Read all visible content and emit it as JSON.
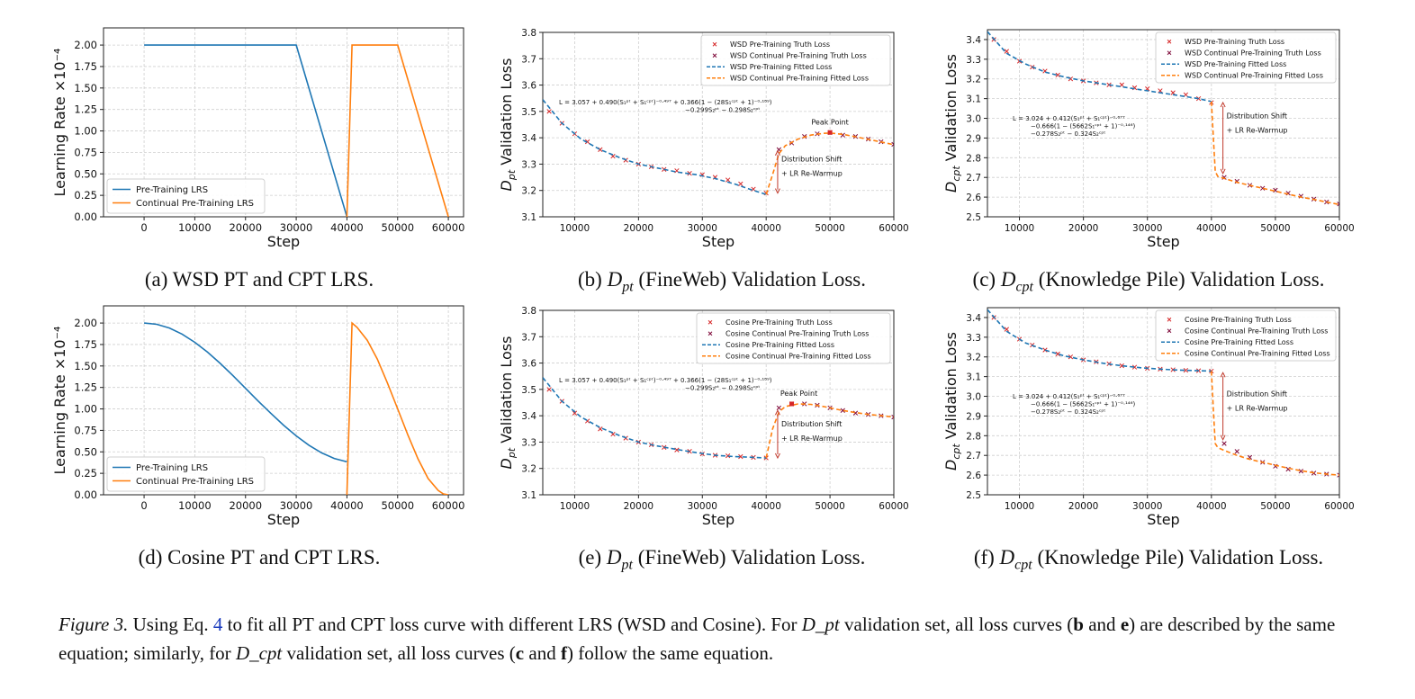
{
  "figure": {
    "label": "Figure 3.",
    "caption_parts": [
      "Using Eq.",
      "4",
      "to fit all PT and CPT loss curve with different LRS (WSD and Cosine). For",
      "D_pt",
      "validation set, all loss curves (",
      "b",
      "and",
      "e",
      ") are described by the same equation; similarly, for",
      "D_cpt",
      "validation set, all loss curves (",
      "c",
      "and",
      "f",
      ") follow the same equation."
    ]
  },
  "chart_data": [
    {
      "id": "a",
      "type": "line",
      "caption": "(a) WSD PT and CPT LRS.",
      "xlabel": "Step",
      "ylabel": "Learning Rate ×10⁻⁴",
      "xlim": [
        -8000,
        63000
      ],
      "ylim": [
        0,
        2.2
      ],
      "xticks": [
        0,
        10000,
        20000,
        30000,
        40000,
        50000,
        60000
      ],
      "yticks": [
        0.0,
        0.25,
        0.5,
        0.75,
        1.0,
        1.25,
        1.5,
        1.75,
        2.0
      ],
      "ytick_labels": [
        "0.00",
        "0.25",
        "0.50",
        "0.75",
        "1.00",
        "1.25",
        "1.50",
        "1.75",
        "2.00"
      ],
      "grid": true,
      "legend_position": "lower-left",
      "series": [
        {
          "name": "Pre-Training LRS",
          "color": "#1f77b4",
          "style": "solid",
          "x": [
            0,
            30000,
            40000
          ],
          "y": [
            2.0,
            2.0,
            0.0
          ]
        },
        {
          "name": "Continual Pre-Training LRS",
          "color": "#ff7f0e",
          "style": "solid",
          "x": [
            40000,
            41000,
            50000,
            60000
          ],
          "y": [
            0.0,
            2.0,
            2.0,
            0.0
          ]
        }
      ]
    },
    {
      "id": "b",
      "type": "line",
      "caption": "(b) D_pt (FineWeb) Validation Loss.",
      "xlabel": "Step",
      "ylabel": "D_pt Validation Loss",
      "xlim": [
        5000,
        60000
      ],
      "ylim": [
        3.1,
        3.8
      ],
      "xticks": [
        10000,
        20000,
        30000,
        40000,
        50000,
        60000
      ],
      "yticks": [
        3.1,
        3.2,
        3.3,
        3.4,
        3.5,
        3.6,
        3.7,
        3.8
      ],
      "ytick_labels": [
        "3.1",
        "3.2",
        "3.3",
        "3.4",
        "3.5",
        "3.6",
        "3.7",
        "3.8"
      ],
      "grid": true,
      "legend_position": "top-right",
      "equation": [
        "L = 3.057 + 0.490(S₁ᵖᵗ + S₁ᶜᵖᵗ)⁻⁰·⁴⁹⁷ + 0.366(1 − (28S₁ᶜᵖᵗ + 1)⁻⁰·¹⁸⁹)",
        "−0.299S₂ᵖᵗ − 0.298S₂ᶜᵖᵗ"
      ],
      "annotations": [
        "Peak Point",
        "Distribution Shift",
        "+ LR Re-Warmup"
      ],
      "series": [
        {
          "name": "WSD Pre-Training Truth Loss",
          "color": "#d62728",
          "style": "x",
          "x": [
            6000,
            8000,
            10000,
            12000,
            14000,
            16000,
            18000,
            20000,
            22000,
            24000,
            26000,
            28000,
            30000,
            32000,
            34000,
            36000,
            38000,
            40000
          ],
          "y": [
            3.5,
            3.455,
            3.415,
            3.385,
            3.355,
            3.33,
            3.315,
            3.3,
            3.29,
            3.28,
            3.275,
            3.265,
            3.26,
            3.25,
            3.24,
            3.225,
            3.205,
            3.19
          ]
        },
        {
          "name": "WSD Continual Pre-Training Truth Loss",
          "color": "#7f0a3a",
          "style": "x",
          "x": [
            42000,
            44000,
            46000,
            48000,
            50000,
            52000,
            54000,
            56000,
            58000,
            60000
          ],
          "y": [
            3.355,
            3.38,
            3.405,
            3.415,
            3.42,
            3.41,
            3.405,
            3.395,
            3.385,
            3.375
          ]
        },
        {
          "name": "WSD Pre-Training Fitted Loss",
          "color": "#1f77b4",
          "style": "dashed",
          "x": [
            5000,
            8000,
            11000,
            14000,
            17000,
            20000,
            23000,
            26000,
            29000,
            32000,
            35000,
            38000,
            40000
          ],
          "y": [
            3.545,
            3.455,
            3.395,
            3.355,
            3.325,
            3.3,
            3.285,
            3.27,
            3.26,
            3.245,
            3.225,
            3.2,
            3.185
          ]
        },
        {
          "name": "WSD Continual Pre-Training Fitted Loss",
          "color": "#ff7f0e",
          "style": "dashed",
          "x": [
            40000,
            41000,
            42000,
            43000,
            45000,
            47000,
            49000,
            50000,
            52000,
            54000,
            56000,
            58000,
            60000
          ],
          "y": [
            3.185,
            3.26,
            3.34,
            3.37,
            3.395,
            3.41,
            3.417,
            3.418,
            3.413,
            3.404,
            3.394,
            3.384,
            3.374
          ]
        }
      ],
      "highlight": {
        "label": "Peak Point",
        "x": 50000,
        "y": 3.42
      }
    },
    {
      "id": "c",
      "type": "line",
      "caption": "(c) D_cpt (Knowledge Pile) Validation Loss.",
      "xlabel": "Step",
      "ylabel": "D_cpt Validation Loss",
      "xlim": [
        5000,
        60000
      ],
      "ylim": [
        2.5,
        3.45
      ],
      "xticks": [
        10000,
        20000,
        30000,
        40000,
        50000,
        60000
      ],
      "yticks": [
        2.5,
        2.6,
        2.7,
        2.8,
        2.9,
        3.0,
        3.1,
        3.2,
        3.3,
        3.4
      ],
      "ytick_labels": [
        "2.5",
        "2.6",
        "2.7",
        "2.8",
        "2.9",
        "3.0",
        "3.1",
        "3.2",
        "3.3",
        "3.4"
      ],
      "grid": true,
      "legend_position": "top-right",
      "equation": [
        "L = 3.024 + 0.412(S₁ᵖᵗ + S₁ᶜᵖᵗ)⁻⁰·⁶⁷⁷",
        "−0.666(1 − (5662S₁ᶜᵖᵗ + 1)⁻⁰·¹⁴⁶)",
        "−0.278S₂ᵖᵗ − 0.324S₂ᶜᵖᵗ"
      ],
      "annotations": [
        "Distribution Shift",
        "+ LR Re-Warmup"
      ],
      "series": [
        {
          "name": "WSD Pre-Training Truth Loss",
          "color": "#d62728",
          "style": "x",
          "x": [
            6000,
            8000,
            10000,
            12000,
            14000,
            16000,
            18000,
            20000,
            22000,
            24000,
            26000,
            28000,
            30000,
            32000,
            34000,
            36000,
            38000,
            40000
          ],
          "y": [
            3.4,
            3.34,
            3.29,
            3.26,
            3.24,
            3.22,
            3.2,
            3.19,
            3.18,
            3.17,
            3.17,
            3.155,
            3.15,
            3.14,
            3.13,
            3.12,
            3.1,
            3.08
          ]
        },
        {
          "name": "WSD Continual Pre-Training Truth Loss",
          "color": "#7f0a3a",
          "style": "x",
          "x": [
            42000,
            44000,
            46000,
            48000,
            50000,
            52000,
            54000,
            56000,
            58000,
            60000
          ],
          "y": [
            2.7,
            2.68,
            2.66,
            2.645,
            2.635,
            2.62,
            2.605,
            2.59,
            2.575,
            2.565
          ]
        },
        {
          "name": "WSD Pre-Training Fitted Loss",
          "color": "#1f77b4",
          "style": "dashed",
          "x": [
            5000,
            8000,
            11000,
            14000,
            17000,
            20000,
            23000,
            26000,
            29000,
            32000,
            35000,
            38000,
            40000
          ],
          "y": [
            3.44,
            3.33,
            3.275,
            3.235,
            3.21,
            3.19,
            3.175,
            3.16,
            3.145,
            3.13,
            3.115,
            3.1,
            3.085
          ]
        },
        {
          "name": "WSD Continual Pre-Training Fitted Loss",
          "color": "#ff7f0e",
          "style": "dashed",
          "x": [
            40000,
            40300,
            40600,
            41000,
            42000,
            44000,
            46000,
            48000,
            50000,
            52000,
            54000,
            56000,
            58000,
            60000
          ],
          "y": [
            3.085,
            2.9,
            2.73,
            2.705,
            2.695,
            2.675,
            2.66,
            2.645,
            2.63,
            2.615,
            2.6,
            2.588,
            2.575,
            2.562
          ]
        }
      ]
    },
    {
      "id": "d",
      "type": "line",
      "caption": "(d) Cosine PT and CPT LRS.",
      "xlabel": "Step",
      "ylabel": "Learning Rate ×10⁻⁴",
      "xlim": [
        -8000,
        63000
      ],
      "ylim": [
        0,
        2.2
      ],
      "xticks": [
        0,
        10000,
        20000,
        30000,
        40000,
        50000,
        60000
      ],
      "yticks": [
        0.0,
        0.25,
        0.5,
        0.75,
        1.0,
        1.25,
        1.5,
        1.75,
        2.0
      ],
      "ytick_labels": [
        "0.00",
        "0.25",
        "0.50",
        "0.75",
        "1.00",
        "1.25",
        "1.50",
        "1.75",
        "2.00"
      ],
      "grid": true,
      "legend_position": "lower-left",
      "series": [
        {
          "name": "Pre-Training LRS",
          "color": "#1f77b4",
          "style": "solid",
          "x": [
            0,
            2500,
            5000,
            7500,
            10000,
            12500,
            15000,
            17500,
            20000,
            22500,
            25000,
            27500,
            30000,
            32500,
            35000,
            37500,
            40000
          ],
          "y": [
            2.0,
            1.985,
            1.942,
            1.871,
            1.776,
            1.662,
            1.531,
            1.389,
            1.24,
            1.092,
            0.949,
            0.811,
            0.686,
            0.577,
            0.488,
            0.423,
            0.385
          ]
        },
        {
          "name": "Continual Pre-Training LRS",
          "color": "#ff7f0e",
          "style": "solid",
          "x": [
            40000,
            41000,
            42000,
            44000,
            46000,
            48000,
            50000,
            52000,
            54000,
            56000,
            58000,
            59000,
            60000
          ],
          "y": [
            0.0,
            2.0,
            1.95,
            1.8,
            1.58,
            1.3,
            1.0,
            0.7,
            0.42,
            0.19,
            0.05,
            0.01,
            0.0
          ]
        }
      ]
    },
    {
      "id": "e",
      "type": "line",
      "caption": "(e) D_pt (FineWeb) Validation Loss.",
      "xlabel": "Step",
      "ylabel": "D_pt Validation Loss",
      "xlim": [
        5000,
        60000
      ],
      "ylim": [
        3.1,
        3.8
      ],
      "xticks": [
        10000,
        20000,
        30000,
        40000,
        50000,
        60000
      ],
      "yticks": [
        3.1,
        3.2,
        3.3,
        3.4,
        3.5,
        3.6,
        3.7,
        3.8
      ],
      "ytick_labels": [
        "3.1",
        "3.2",
        "3.3",
        "3.4",
        "3.5",
        "3.6",
        "3.7",
        "3.8"
      ],
      "grid": true,
      "legend_position": "top-right",
      "equation": [
        "L = 3.057 + 0.490(S₁ᵖᵗ + S₁ᶜᵖᵗ)⁻⁰·⁴⁹⁷ + 0.366(1 − (28S₁ᶜᵖᵗ + 1)⁻⁰·¹⁸⁹)",
        "−0.299S₂ᵖᵗ − 0.298S₂ᶜᵖᵗ"
      ],
      "annotations": [
        "Peak Point",
        "Distribution Shift",
        "+ LR Re-Warmup"
      ],
      "series": [
        {
          "name": "Cosine Pre-Training Truth Loss",
          "color": "#d62728",
          "style": "x",
          "x": [
            6000,
            8000,
            10000,
            12000,
            14000,
            16000,
            18000,
            20000,
            22000,
            24000,
            26000,
            28000,
            30000,
            32000,
            34000,
            36000,
            38000,
            40000
          ],
          "y": [
            3.5,
            3.455,
            3.41,
            3.38,
            3.35,
            3.33,
            3.315,
            3.3,
            3.29,
            3.28,
            3.27,
            3.265,
            3.255,
            3.25,
            3.248,
            3.245,
            3.242,
            3.24
          ]
        },
        {
          "name": "Cosine Continual Pre-Training Truth Loss",
          "color": "#7f0a3a",
          "style": "x",
          "x": [
            42000,
            44000,
            46000,
            48000,
            50000,
            52000,
            54000,
            56000,
            58000,
            60000
          ],
          "y": [
            3.43,
            3.445,
            3.445,
            3.44,
            3.43,
            3.42,
            3.41,
            3.405,
            3.4,
            3.395
          ]
        },
        {
          "name": "Cosine Pre-Training Fitted Loss",
          "color": "#1f77b4",
          "style": "dashed",
          "x": [
            5000,
            8000,
            11000,
            14000,
            17000,
            20000,
            23000,
            26000,
            29000,
            32000,
            35000,
            38000,
            40000
          ],
          "y": [
            3.545,
            3.455,
            3.395,
            3.355,
            3.325,
            3.3,
            3.285,
            3.272,
            3.26,
            3.25,
            3.245,
            3.242,
            3.24
          ]
        },
        {
          "name": "Cosine Continual Pre-Training Fitted Loss",
          "color": "#ff7f0e",
          "style": "dashed",
          "x": [
            40000,
            41000,
            42000,
            43000,
            45000,
            47000,
            49000,
            50000,
            52000,
            54000,
            56000,
            58000,
            60000
          ],
          "y": [
            3.24,
            3.35,
            3.415,
            3.435,
            3.445,
            3.443,
            3.435,
            3.43,
            3.42,
            3.412,
            3.405,
            3.4,
            3.395
          ]
        }
      ],
      "highlight": {
        "label": "Peak Point",
        "x": 44000,
        "y": 3.445
      }
    },
    {
      "id": "f",
      "type": "line",
      "caption": "(f) D_cpt (Knowledge Pile) Validation Loss.",
      "xlabel": "Step",
      "ylabel": "D_cpt Validation Loss",
      "xlim": [
        5000,
        60000
      ],
      "ylim": [
        2.5,
        3.45
      ],
      "xticks": [
        10000,
        20000,
        30000,
        40000,
        50000,
        60000
      ],
      "yticks": [
        2.5,
        2.6,
        2.7,
        2.8,
        2.9,
        3.0,
        3.1,
        3.2,
        3.3,
        3.4
      ],
      "ytick_labels": [
        "2.5",
        "2.6",
        "2.7",
        "2.8",
        "2.9",
        "3.0",
        "3.1",
        "3.2",
        "3.3",
        "3.4"
      ],
      "grid": true,
      "legend_position": "top-right",
      "equation": [
        "L = 3.024 + 0.412(S₁ᵖᵗ + S₁ᶜᵖᵗ)⁻⁰·⁶⁷⁷",
        "−0.666(1 − (5662S₁ᶜᵖᵗ + 1)⁻⁰·¹⁴⁶)",
        "−0.278S₂ᵖᵗ − 0.324S₂ᶜᵖᵗ"
      ],
      "annotations": [
        "Distribution Shift",
        "+ LR Re-Warmup"
      ],
      "series": [
        {
          "name": "Cosine Pre-Training Truth Loss",
          "color": "#d62728",
          "style": "x",
          "x": [
            6000,
            8000,
            10000,
            12000,
            14000,
            16000,
            18000,
            20000,
            22000,
            24000,
            26000,
            28000,
            30000,
            32000,
            34000,
            36000,
            38000,
            40000
          ],
          "y": [
            3.4,
            3.34,
            3.29,
            3.26,
            3.235,
            3.215,
            3.2,
            3.185,
            3.175,
            3.165,
            3.155,
            3.148,
            3.142,
            3.138,
            3.135,
            3.132,
            3.13,
            3.128
          ]
        },
        {
          "name": "Cosine Continual Pre-Training Truth Loss",
          "color": "#7f0a3a",
          "style": "x",
          "x": [
            42000,
            44000,
            46000,
            48000,
            50000,
            52000,
            54000,
            56000,
            58000,
            60000
          ],
          "y": [
            2.76,
            2.72,
            2.69,
            2.665,
            2.645,
            2.63,
            2.62,
            2.61,
            2.605,
            2.6
          ]
        },
        {
          "name": "Cosine Pre-Training Fitted Loss",
          "color": "#1f77b4",
          "style": "dashed",
          "x": [
            5000,
            8000,
            11000,
            14000,
            17000,
            20000,
            23000,
            26000,
            29000,
            32000,
            35000,
            38000,
            40000
          ],
          "y": [
            3.44,
            3.33,
            3.27,
            3.235,
            3.205,
            3.185,
            3.168,
            3.155,
            3.145,
            3.138,
            3.133,
            3.13,
            3.128
          ]
        },
        {
          "name": "Cosine Continual Pre-Training Fitted Loss",
          "color": "#ff7f0e",
          "style": "dashed",
          "x": [
            40000,
            40300,
            40600,
            41000,
            42000,
            44000,
            46000,
            48000,
            50000,
            52000,
            54000,
            56000,
            58000,
            60000
          ],
          "y": [
            3.128,
            2.93,
            2.76,
            2.74,
            2.725,
            2.7,
            2.68,
            2.665,
            2.65,
            2.635,
            2.622,
            2.612,
            2.605,
            2.6
          ]
        }
      ]
    }
  ]
}
